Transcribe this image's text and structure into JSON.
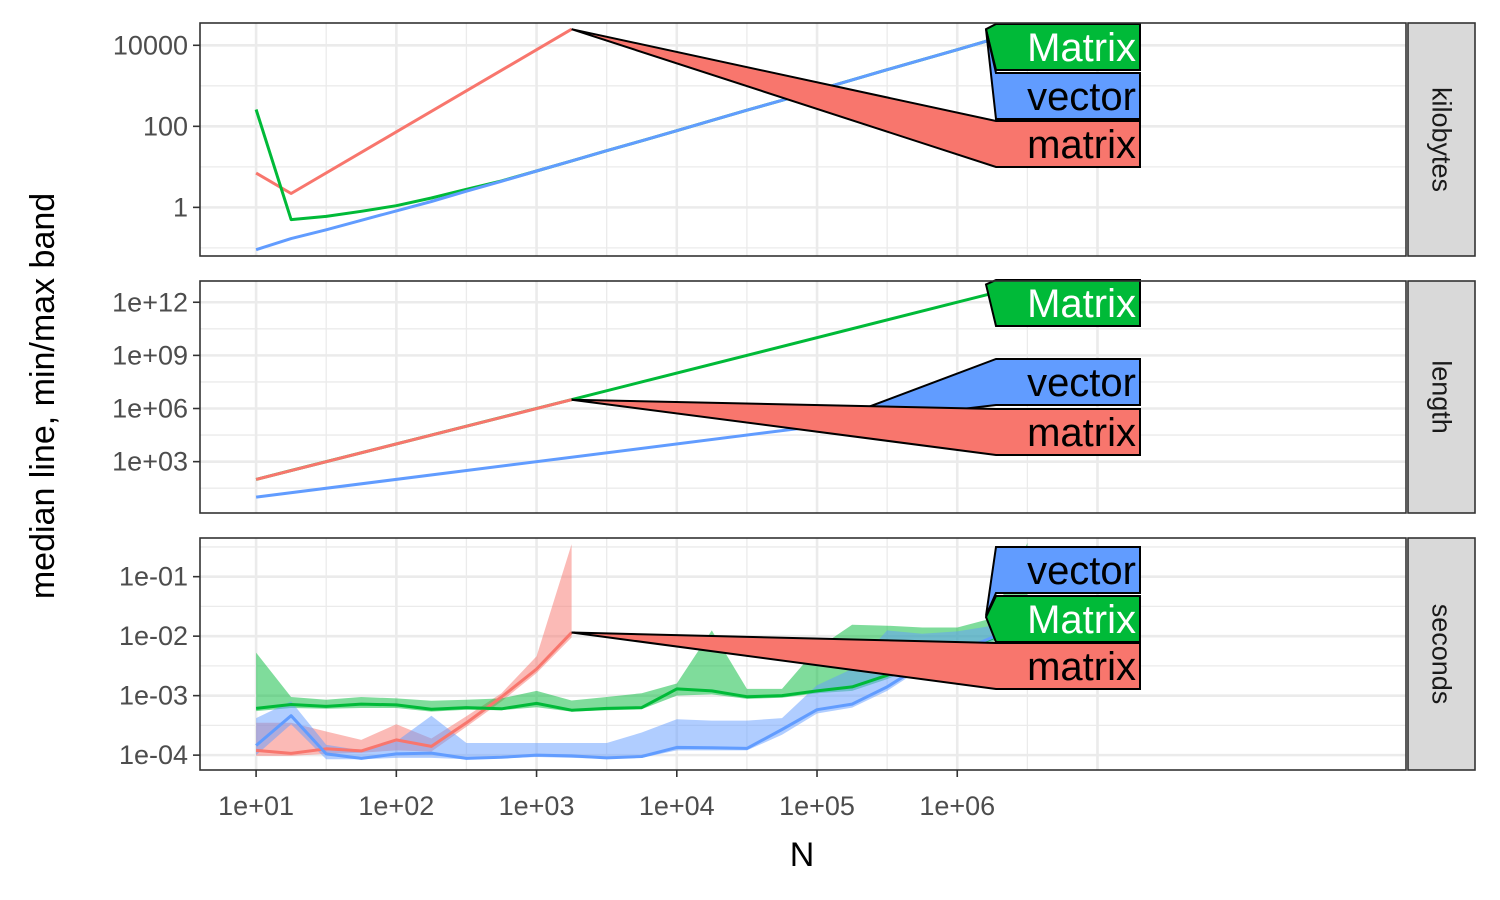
{
  "chart_data": {
    "type": "line",
    "xlabel": "N",
    "ylabel": "median line, min/max band",
    "x_scale": "log10",
    "x_ticks": [
      "1e+01",
      "1e+02",
      "1e+03",
      "1e+04",
      "1e+05",
      "1e+06"
    ],
    "colors": {
      "matrix": "#F8766D",
      "Matrix": "#00BA38",
      "vector": "#619CFF"
    },
    "panels": [
      {
        "facet": "kilobytes",
        "y_scale": "log10",
        "y_ticks": [
          "1",
          "100",
          "10000"
        ],
        "series": [
          {
            "name": "matrix",
            "x": [
              10,
              17.78,
              1778.3
            ],
            "y": [
              7,
              2.2,
              25000
            ]
          },
          {
            "name": "Matrix",
            "x": [
              10,
              17.78,
              31.62,
              56.23,
              100,
              177.8,
              316.2,
              562.3,
              1000,
              1778.3,
              3162.3,
              5623.4,
              10000,
              17783,
              31623,
              56234,
              100000,
              177828,
              316228,
              562341,
              1000000,
              1778279,
              3162278
            ],
            "y": [
              260,
              0.5,
              0.6,
              0.8,
              1.1,
              1.7,
              2.8,
              4.5,
              7.9,
              14,
              25,
              44,
              78,
              140,
              250,
              440,
              780,
              1400,
              2500,
              4400,
              7800,
              14000,
              25000
            ]
          },
          {
            "name": "vector",
            "x": [
              10,
              17.78,
              31.62,
              56.23,
              100,
              177.8,
              316.2,
              562.3,
              1000,
              1778.3,
              3162.3,
              5623.4,
              10000,
              17783,
              31623,
              56234,
              100000,
              177828,
              316228,
              562341,
              1000000,
              1778279,
              3162278
            ],
            "y": [
              0.09,
              0.17,
              0.28,
              0.48,
              0.82,
              1.4,
              2.5,
              4.4,
              7.9,
              14,
              25,
              44,
              78,
              140,
              250,
              440,
              780,
              1400,
              2500,
              4400,
              7800,
              14000,
              25000
            ]
          }
        ],
        "labels": [
          {
            "series": "Matrix",
            "text": "Matrix"
          },
          {
            "series": "vector",
            "text": "vector"
          },
          {
            "series": "matrix",
            "text": "matrix"
          }
        ]
      },
      {
        "facet": "length",
        "y_scale": "log10",
        "y_ticks": [
          "1e+03",
          "1e+06",
          "1e+09",
          "1e+12"
        ],
        "series": [
          {
            "name": "Matrix",
            "x": [
              10,
              17.78,
              3162278
            ],
            "y": [
              100,
              316,
              10000000000000
            ]
          },
          {
            "name": "vector",
            "x": [
              10,
              100000
            ],
            "y": [
              10,
              100000
            ]
          },
          {
            "name": "matrix",
            "x": [
              10,
              1778.3
            ],
            "y": [
              100,
              3162300
            ]
          }
        ],
        "labels": [
          {
            "series": "Matrix",
            "text": "Matrix"
          },
          {
            "series": "vector",
            "text": "vector"
          },
          {
            "series": "matrix",
            "text": "matrix"
          }
        ]
      },
      {
        "facet": "seconds",
        "y_scale": "log10",
        "y_ticks": [
          "1e-04",
          "1e-03",
          "1e-02",
          "1e-01"
        ],
        "series": [
          {
            "name": "matrix",
            "x": [
              10,
              17.78,
              31.62,
              56.23,
              100,
              177.8,
              316.2,
              562.3,
              1000,
              1778.3
            ],
            "y": [
              0.00012,
              0.000107,
              0.000128,
              0.000118,
              0.00018,
              0.00014,
              0.00035,
              0.00095,
              0.0028,
              0.0115
            ],
            "ymin": [
              9.7e-05,
              9.7e-05,
              0.000105,
              0.00011,
              0.00012,
              0.000115,
              0.0003,
              0.0008,
              0.0024,
              0.0095
            ],
            "ymax": [
              0.00035,
              0.00035,
              0.00025,
              0.00018,
              0.00033,
              0.00019,
              0.00045,
              0.0011,
              0.0046,
              0.35
            ]
          },
          {
            "name": "Matrix",
            "x": [
              10,
              17.78,
              31.62,
              56.23,
              100,
              177.8,
              316.2,
              562.3,
              1000,
              1778.3,
              3162.3,
              5623.4,
              10000,
              17783,
              31623,
              56234,
              100000,
              177828,
              316228,
              562341,
              1000000,
              1778279,
              3162278
            ],
            "y": [
              0.00061,
              0.00071,
              0.00066,
              0.00072,
              0.0007,
              0.00059,
              0.00063,
              0.0006,
              0.00074,
              0.00057,
              0.00061,
              0.00063,
              0.0013,
              0.0012,
              0.00096,
              0.001,
              0.0012,
              0.0014,
              0.0022,
              0.0038,
              0.0055,
              0.0092,
              0.021
            ],
            "ymin": [
              0.00055,
              0.00062,
              0.0006,
              0.00062,
              0.00062,
              0.00054,
              0.00058,
              0.00057,
              0.00064,
              0.00054,
              0.00057,
              0.00059,
              0.001,
              0.00105,
              0.00088,
              0.00092,
              0.0011,
              0.0012,
              0.0019,
              0.0033,
              0.0047,
              0.0078,
              0.018
            ],
            "ymax": [
              0.0053,
              0.00095,
              0.00085,
              0.00095,
              0.0009,
              0.00082,
              0.00085,
              0.0009,
              0.0012,
              0.00083,
              0.00095,
              0.0011,
              0.0016,
              0.0125,
              0.0013,
              0.0013,
              0.0062,
              0.0155,
              0.015,
              0.014,
              0.014,
              0.02,
              0.37
            ]
          },
          {
            "name": "vector",
            "x": [
              10,
              17.78,
              31.62,
              56.23,
              100,
              177.8,
              316.2,
              562.3,
              1000,
              1778.3,
              3162.3,
              5623.4,
              10000,
              17783,
              31623,
              56234,
              100000,
              177828,
              316228,
              562341,
              1000000,
              1778279,
              3162278
            ],
            "y": [
              0.000145,
              0.00046,
              0.000105,
              8.8e-05,
              0.000105,
              0.000108,
              8.8e-05,
              9.2e-05,
              0.0001,
              9.7e-05,
              9e-05,
              9.5e-05,
              0.000135,
              0.000133,
              0.00013,
              0.00027,
              0.00058,
              0.00072,
              0.0014,
              0.0033,
              0.0055,
              0.0095,
              0.022
            ],
            "ymin": [
              0.0001,
              0.00033,
              8.5e-05,
              8.5e-05,
              9e-05,
              9e-05,
              8.5e-05,
              8.8e-05,
              9.3e-05,
              9e-05,
              8.7e-05,
              9e-05,
              0.00012,
              0.00012,
              0.00012,
              0.00022,
              0.0005,
              0.00063,
              0.0012,
              0.0029,
              0.0048,
              0.0083,
              0.019
            ],
            "ymax": [
              0.00042,
              0.0008,
              0.00015,
              0.00012,
              0.00017,
              0.00046,
              0.00016,
              0.00016,
              0.00016,
              0.00016,
              0.00016,
              0.00024,
              0.0004,
              0.00038,
              0.00038,
              0.00042,
              0.0015,
              0.0028,
              0.0125,
              0.011,
              0.012,
              0.015,
              0.032
            ]
          }
        ],
        "labels": [
          {
            "series": "vector",
            "text": "vector"
          },
          {
            "series": "Matrix",
            "text": "Matrix"
          },
          {
            "series": "matrix",
            "text": "matrix"
          }
        ]
      }
    ]
  }
}
